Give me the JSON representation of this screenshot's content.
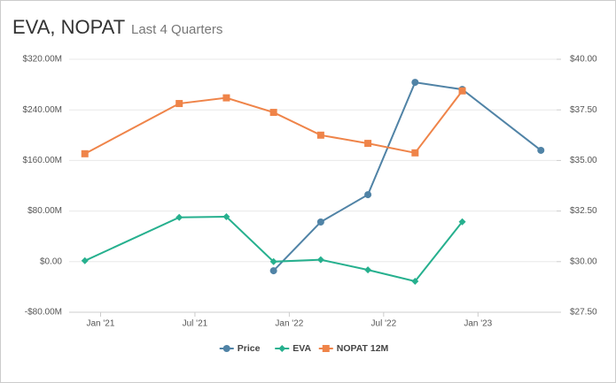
{
  "chart_data": {
    "type": "line",
    "title": "EVA, NOPAT",
    "subtitle": "Last 4 Quarters",
    "xlim": [
      "2020-11",
      "2023-06"
    ],
    "xticks": [
      {
        "value": "2021-01",
        "label": "Jan '21"
      },
      {
        "value": "2021-07",
        "label": "Jul '21"
      },
      {
        "value": "2022-01",
        "label": "Jan '22"
      },
      {
        "value": "2022-07",
        "label": "Jul '22"
      },
      {
        "value": "2023-01",
        "label": "Jan '23"
      }
    ],
    "ylim": [
      -80,
      320
    ],
    "yticks": [
      {
        "value": -80,
        "label": "-$80.00M"
      },
      {
        "value": 0,
        "label": "$0.00"
      },
      {
        "value": 80,
        "label": "$80.00M"
      },
      {
        "value": 160,
        "label": "$160.00M"
      },
      {
        "value": 240,
        "label": "$240.00M"
      },
      {
        "value": 320,
        "label": "$320.00M"
      }
    ],
    "y2lim": [
      27.5,
      40
    ],
    "y2ticks": [
      {
        "value": 27.5,
        "label": "$27.50"
      },
      {
        "value": 30,
        "label": "$30.00"
      },
      {
        "value": 32.5,
        "label": "$32.50"
      },
      {
        "value": 35,
        "label": "$35.00"
      },
      {
        "value": 37.5,
        "label": "$37.50"
      },
      {
        "value": 40,
        "label": "$40.00"
      }
    ],
    "grid": true,
    "legend": "bottom",
    "series": [
      {
        "name": "Price",
        "color": "#5083a6",
        "marker": "circle",
        "axis": "y2",
        "x": [
          "2021-12",
          "2022-03",
          "2022-06",
          "2022-09",
          "2022-12",
          "2023-05"
        ],
        "values": [
          29.55,
          31.96,
          33.31,
          38.86,
          38.51,
          35.5
        ]
      },
      {
        "name": "EVA",
        "color": "#26b08e",
        "marker": "diamond",
        "x": [
          "2020-12",
          "2021-06",
          "2021-09",
          "2021-12",
          "2022-03",
          "2022-06",
          "2022-09",
          "2022-12"
        ],
        "values": [
          1.4,
          70,
          71,
          -0.0,
          3,
          -13,
          -31,
          63
        ]
      },
      {
        "name": "NOPAT 12M",
        "color": "#ef8449",
        "marker": "square",
        "x": [
          "2020-12",
          "2021-06",
          "2021-09",
          "2021-12",
          "2022-03",
          "2022-06",
          "2022-09",
          "2022-12"
        ],
        "values": [
          170.6,
          250,
          259,
          236,
          200,
          187,
          172,
          270
        ]
      }
    ]
  }
}
